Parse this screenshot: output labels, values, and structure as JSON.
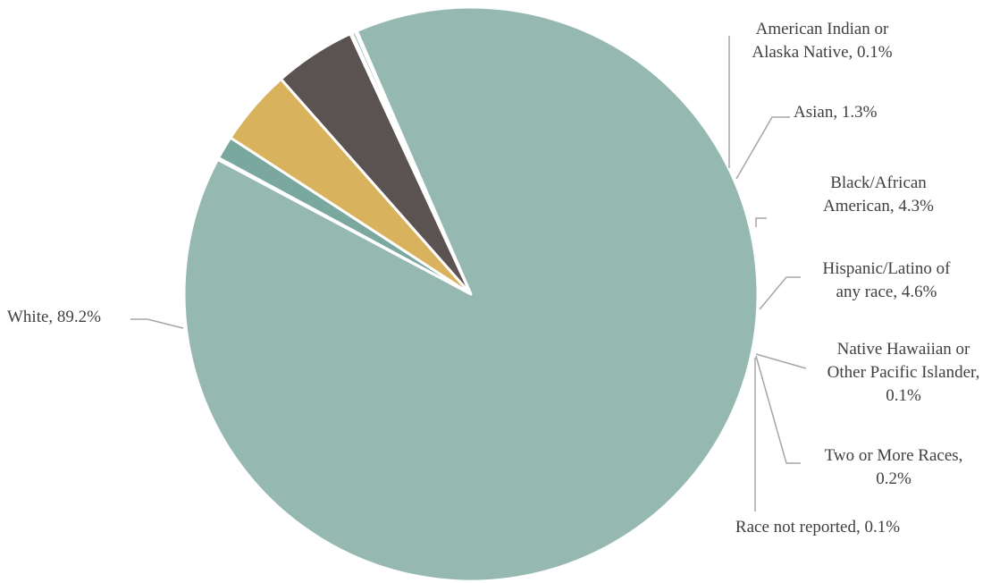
{
  "chart_data": {
    "type": "pie",
    "title": "",
    "label_format": "{name}, {value}%",
    "series": [
      {
        "categories": [
          "American Indian or Alaska Native",
          "Asian",
          "Black/African American",
          "Hispanic/Latino of any race",
          "Native Hawaiian or Other Pacific Islander",
          "Two or More Races",
          "Race not reported",
          "White"
        ],
        "values": [
          0.1,
          1.3,
          4.3,
          4.6,
          0.1,
          0.2,
          0.1,
          89.2
        ],
        "colors": [
          "#87aba4",
          "#7ba89e",
          "#d9b25e",
          "#5b5352",
          "#8db3ab",
          "#8db3ab",
          "#8db3ab",
          "#95b8b0"
        ]
      }
    ],
    "legend": "none",
    "data_labels": "outside with leader lines"
  },
  "labels": {
    "american_indian": [
      "American Indian or",
      "Alaska Native, 0.1%"
    ],
    "asian": [
      "Asian, 1.3%"
    ],
    "black": [
      "Black/African",
      "American, 4.3%"
    ],
    "hispanic": [
      "Hispanic/Latino of",
      "any race, 4.6%"
    ],
    "native_hawaiian": [
      "Native Hawaiian or",
      "Other Pacific Islander,",
      "0.1%"
    ],
    "two_or_more": [
      "Two or More Races,",
      "0.2%"
    ],
    "not_reported": [
      "Race not reported, 0.1%"
    ],
    "white": [
      "White, 89.2%"
    ]
  }
}
